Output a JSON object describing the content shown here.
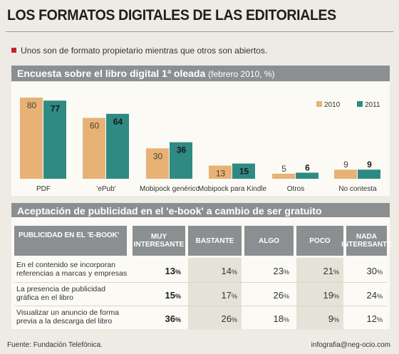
{
  "header": {
    "title": "LOS FORMATOS DIGITALES DE LAS EDITORIALES",
    "subtitle": "Unos son de formato propietario mientras que otros son abiertos."
  },
  "survey_band": {
    "title": "Encuesta sobre el libro digital 1ª oleada",
    "note": "(febrero 2010, %)"
  },
  "chart_data": {
    "type": "bar",
    "categories": [
      "PDF",
      "'ePub'",
      "Mobipock genérico",
      "Mobipock para Kindle",
      "Otros",
      "No contesta"
    ],
    "series": [
      {
        "name": "2010",
        "values": [
          80,
          60,
          30,
          13,
          5,
          9
        ]
      },
      {
        "name": "2011",
        "values": [
          77,
          64,
          36,
          15,
          6,
          9
        ]
      }
    ],
    "ylim": [
      0,
      80
    ],
    "grid": false,
    "legend": "top-right",
    "colors": {
      "2010": "#e8b276",
      "2011": "#2e8a82"
    }
  },
  "acceptance": {
    "title": "Aceptación de publicidad en el 'e-book' a cambio de ser gratuito",
    "headers": [
      "PUBLICIDAD EN EL 'E-BOOK'",
      "MUY INTERESANTE",
      "BASTANTE",
      "ALGO",
      "POCO",
      "NADA INTERESANTE"
    ],
    "header_lines": [
      [
        "PUBLICIDAD EN EL 'E-BOOK'"
      ],
      [
        "MUY",
        "INTERESANTE"
      ],
      [
        "BASTANTE"
      ],
      [
        "ALGO"
      ],
      [
        "POCO"
      ],
      [
        "NADA",
        "INTERESANTE"
      ]
    ],
    "rows": [
      {
        "label": "En el contenido se incorporan referencias a marcas y empresas",
        "label_lines": [
          "En el contenido se incorporan",
          "referencias a marcas y empresas"
        ],
        "values": [
          13,
          14,
          23,
          21,
          30
        ]
      },
      {
        "label": "La presencia de publicidad gráfica en el libro",
        "label_lines": [
          "La presencia de publicidad",
          "gráfica en el libro"
        ],
        "values": [
          15,
          17,
          26,
          19,
          24
        ]
      },
      {
        "label": "Visualizar un anuncio de forma previa a la descarga del libro",
        "label_lines": [
          "Visualizar un anuncio de forma",
          "previa a la descarga del libro"
        ],
        "values": [
          36,
          26,
          18,
          9,
          12
        ]
      }
    ],
    "unit": "%"
  },
  "footer": {
    "source": "Fuente: Fundación Telefónica.",
    "credit": "infografia@neg-ocio.com"
  }
}
